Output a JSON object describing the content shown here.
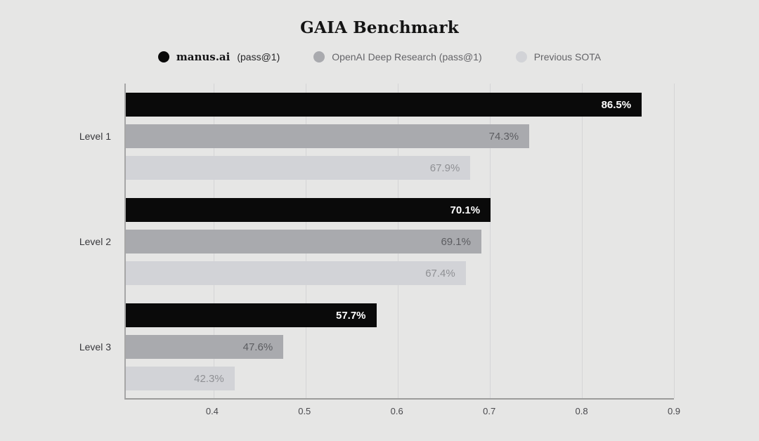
{
  "page": {
    "background": "#e6e6e5"
  },
  "chart_data": {
    "type": "bar",
    "orientation": "horizontal",
    "title": "GAIA Benchmark",
    "categories": [
      "Level 1",
      "Level 2",
      "Level 3"
    ],
    "series": [
      {
        "name": "manus.ai (pass@1)",
        "color": "#0a0a0a",
        "label_color": "#ffffff",
        "values": [
          86.5,
          70.1,
          57.7
        ],
        "labels": [
          "86.5%",
          "70.1%",
          "57.7%"
        ]
      },
      {
        "name": "OpenAI Deep Research (pass@1)",
        "color": "#a9aaae",
        "label_color": "#5c5d61",
        "values": [
          74.3,
          69.1,
          47.6
        ],
        "labels": [
          "74.3%",
          "69.1%",
          "47.6%"
        ]
      },
      {
        "name": "Previous SOTA",
        "color": "#d2d3d7",
        "label_color": "#8f9094",
        "values": [
          67.9,
          67.4,
          42.3
        ],
        "labels": [
          "67.9%",
          "67.4%",
          "42.3%"
        ]
      }
    ],
    "x_axis": {
      "min": 0.305,
      "max": 0.9,
      "ticks": [
        0.4,
        0.5,
        0.6,
        0.7,
        0.8,
        0.9
      ],
      "tick_labels": [
        "0.4",
        "0.5",
        "0.6",
        "0.7",
        "0.8",
        "0.9"
      ]
    },
    "grid": true,
    "legend_position": "top",
    "value_label_position": "inside-end"
  },
  "legend": {
    "items": [
      {
        "swatch_color": "#0a0a0a",
        "swatch_icon": "circle-icon",
        "name": "manus.ai",
        "suffix": " (pass@1)",
        "bold_serif": true
      },
      {
        "swatch_color": "#a9aaae",
        "swatch_icon": "circle-icon",
        "name": "OpenAI Deep Research (pass@1)",
        "bold_serif": false
      },
      {
        "swatch_color": "#d2d3d7",
        "swatch_icon": "circle-icon",
        "name": "Previous SOTA",
        "bold_serif": false
      }
    ]
  }
}
